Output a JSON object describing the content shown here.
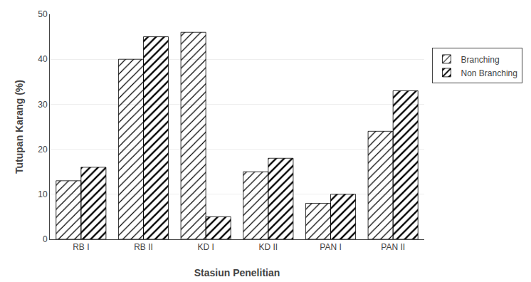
{
  "chart_data": {
    "type": "bar",
    "categories": [
      "RB I",
      "RB II",
      "KD I",
      "KD II",
      "PAN I",
      "PAN II"
    ],
    "series": [
      {
        "name": "Branching",
        "color": "#e8e8e8",
        "values": [
          13,
          40,
          46,
          15,
          8,
          24
        ]
      },
      {
        "name": "Non Branching",
        "color": "#c8c8c8",
        "values": [
          16,
          45,
          5,
          18,
          10,
          33
        ]
      }
    ],
    "xlabel": "Stasiun Penelitian",
    "ylabel": "Tutupan Karang (%)",
    "ylim": [
      0,
      50
    ],
    "yticks": [
      0,
      10,
      20,
      30,
      40,
      50
    ],
    "grid": true,
    "legend": "right"
  }
}
